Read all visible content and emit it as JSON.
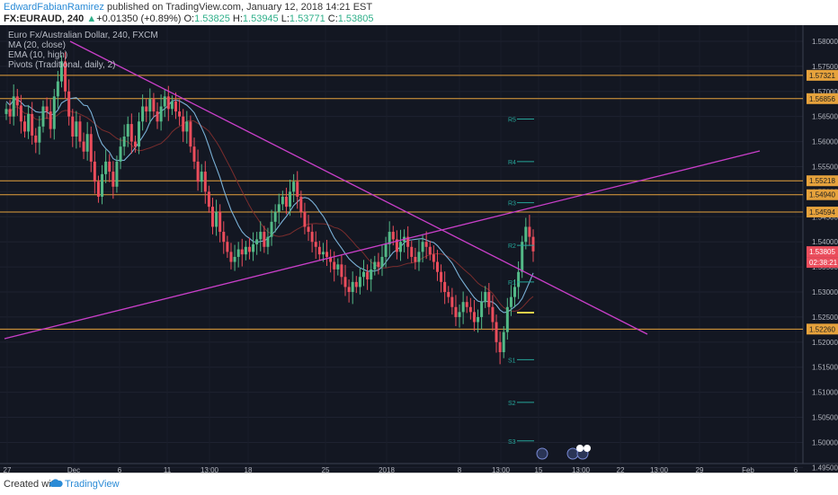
{
  "header": {
    "author": "EdwardFabianRamirez",
    "published": "published on TradingView.com, January 12, 2018 14:21 EST",
    "symbol": "FX:EURAUD, 240",
    "change": "+0.01350 (+0.89%)",
    "o_label": "O:",
    "o_value": "1.53825",
    "h_label": "H:",
    "h_value": "1.53945",
    "l_label": "L:",
    "l_value": "1.53771",
    "c_label": "C:",
    "c_value": "1.53805",
    "last": "1.53805"
  },
  "legend": {
    "title": "Euro Fx/Australian Dollar, 240, FXCM",
    "ma": "MA (20, close)",
    "ema": "EMA (10, high)",
    "pivots": "Pivots (Traditional, daily, 2)"
  },
  "footer": {
    "created_with": "Created with",
    "brand": "TradingView"
  },
  "colors": {
    "background": "#131722",
    "up": "#53b987",
    "down": "#eb4d5c",
    "trendline": "#c93fc9",
    "level": "#e6a23c",
    "ma": "#7a2d2d",
    "ema": "#7ab0d6",
    "pivot": "#26a69a"
  },
  "chart_data": {
    "type": "candlestick",
    "symbol": "FX:EURAUD",
    "timeframe": "240",
    "ylim": [
      1.4965,
      1.5825
    ],
    "y_ticks": [
      "1.58000",
      "1.57500",
      "1.57000",
      "1.56500",
      "1.56000",
      "1.55500",
      "1.55000",
      "1.54500",
      "1.54000",
      "1.53500",
      "1.53000",
      "1.52500",
      "1.52000",
      "1.51500",
      "1.51000",
      "1.50500",
      "1.50000",
      "1.49500"
    ],
    "x_ticks": [
      "27",
      "Dec",
      "6",
      "11",
      "13:00",
      "18",
      "25",
      "2018",
      "8",
      "13:00",
      "15",
      "13:00",
      "22",
      "13:00",
      "29",
      "Feb",
      "6"
    ],
    "horizontal_levels": [
      {
        "value": 1.57321,
        "label": "1.57321"
      },
      {
        "value": 1.56856,
        "label": "1.56856"
      },
      {
        "value": 1.55218,
        "label": "1.55218"
      },
      {
        "value": 1.5494,
        "label": "1.54940"
      },
      {
        "value": 1.54594,
        "label": "1.54594"
      },
      {
        "value": 1.5226,
        "label": "1.52260"
      }
    ],
    "price_badges": [
      {
        "value": 1.53805,
        "label": "1.53805",
        "color": "#eb4d5c"
      },
      {
        "value": 1.5359,
        "label": "02:38:21",
        "color": "#eb4d5c"
      }
    ],
    "pivots": [
      {
        "name": "R5",
        "value": 1.5645
      },
      {
        "name": "R4",
        "value": 1.556
      },
      {
        "name": "R3",
        "value": 1.5478
      },
      {
        "name": "R2",
        "value": 1.5393
      },
      {
        "name": "R1",
        "value": 1.532
      },
      {
        "name": "S1",
        "value": 1.5165
      },
      {
        "name": "S2",
        "value": 1.508
      },
      {
        "name": "S3",
        "value": 1.5003
      }
    ],
    "closes": [
      1.5665,
      1.565,
      1.569,
      1.5672,
      1.564,
      1.562,
      1.5655,
      1.5612,
      1.5598,
      1.563,
      1.567,
      1.566,
      1.5625,
      1.569,
      1.572,
      1.576,
      1.57,
      1.565,
      1.561,
      1.564,
      1.56,
      1.558,
      1.5615,
      1.556,
      1.552,
      1.549,
      1.5535,
      1.556,
      1.554,
      1.551,
      1.556,
      1.559,
      1.561,
      1.5635,
      1.56,
      1.559,
      1.564,
      1.567,
      1.566,
      1.5685,
      1.566,
      1.564,
      1.567,
      1.569,
      1.5665,
      1.568,
      1.566,
      1.565,
      1.562,
      1.564,
      1.559,
      1.556,
      1.552,
      1.554,
      1.55,
      1.547,
      1.543,
      1.546,
      1.542,
      1.54,
      1.538,
      1.536,
      1.537,
      1.5385,
      1.5375,
      1.539,
      1.538,
      1.5395,
      1.5405,
      1.542,
      1.539,
      1.541,
      1.544,
      1.546,
      1.5475,
      1.549,
      1.547,
      1.55,
      1.552,
      1.549,
      1.546,
      1.543,
      1.542,
      1.54,
      1.539,
      1.5375,
      1.538,
      1.537,
      1.536,
      1.5345,
      1.5355,
      1.533,
      1.531,
      1.53,
      1.532,
      1.531,
      1.533,
      1.534,
      1.5325,
      1.5345,
      1.536,
      1.535,
      1.537,
      1.5395,
      1.542,
      1.5405,
      1.538,
      1.54,
      1.541,
      1.539,
      1.537,
      1.536,
      1.538,
      1.54,
      1.539,
      1.5375,
      1.536,
      1.534,
      1.532,
      1.53,
      1.529,
      1.527,
      1.525,
      1.526,
      1.528,
      1.527,
      1.526,
      1.524,
      1.525,
      1.528,
      1.53,
      1.527,
      1.524,
      1.52,
      1.518,
      1.522,
      1.527,
      1.529,
      1.531,
      1.534,
      1.54,
      1.543,
      1.541,
      1.5381
    ]
  }
}
